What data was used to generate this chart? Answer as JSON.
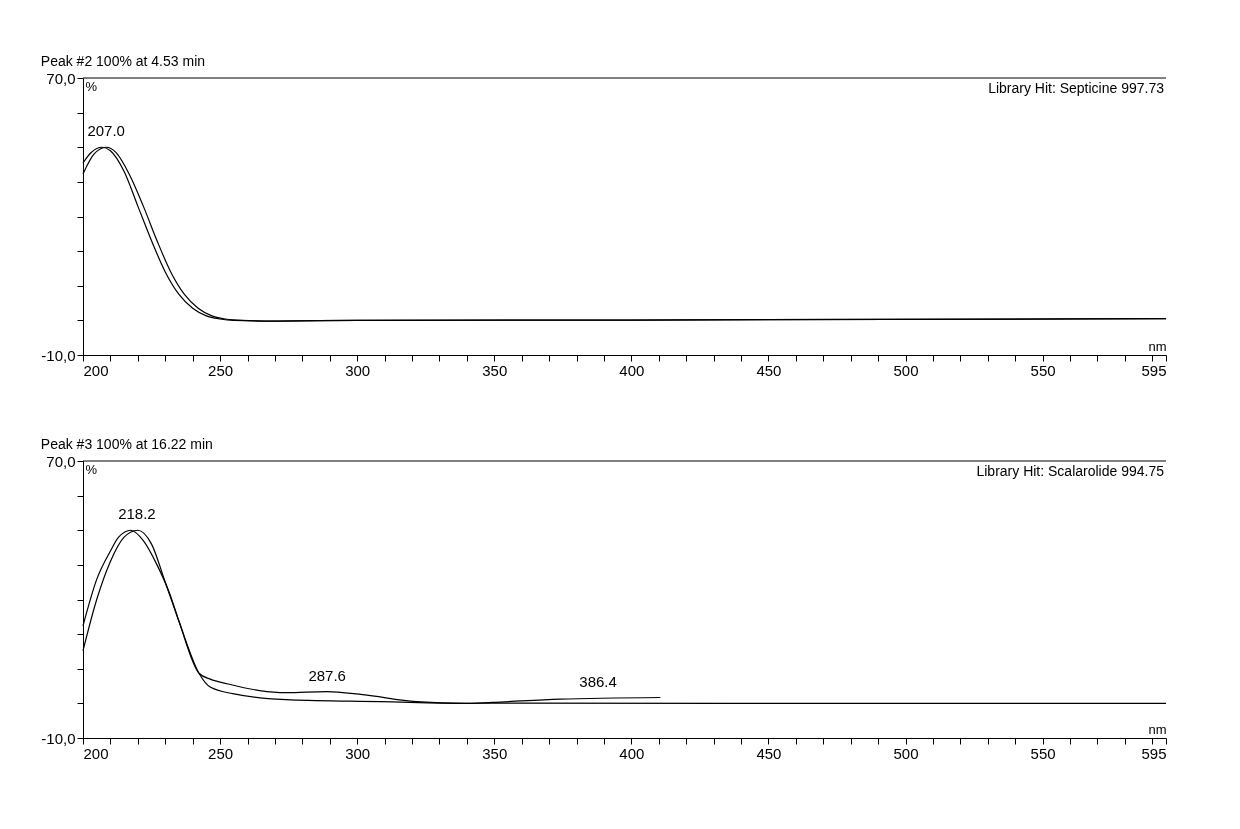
{
  "chart_data": [
    {
      "type": "line",
      "title": "Peak #2   100% at 4.53 min",
      "xlabel": "nm",
      "ylabel": "%",
      "xlim": [
        200,
        595
      ],
      "ylim": [
        -10,
        70
      ],
      "xticks": [
        200,
        {
          "value": 210,
          "label": null
        },
        {
          "value": 220,
          "label": null
        },
        {
          "value": 230,
          "label": null
        },
        {
          "value": 240,
          "label": null
        },
        250,
        {
          "value": 260,
          "label": null
        },
        {
          "value": 270,
          "label": null
        },
        {
          "value": 280,
          "label": null
        },
        {
          "value": 290,
          "label": null
        },
        300,
        {
          "value": 310,
          "label": null
        },
        {
          "value": 320,
          "label": null
        },
        {
          "value": 330,
          "label": null
        },
        {
          "value": 340,
          "label": null
        },
        350,
        {
          "value": 360,
          "label": null
        },
        {
          "value": 370,
          "label": null
        },
        {
          "value": 380,
          "label": null
        },
        {
          "value": 390,
          "label": null
        },
        400,
        {
          "value": 410,
          "label": null
        },
        {
          "value": 420,
          "label": null
        },
        {
          "value": 430,
          "label": null
        },
        {
          "value": 440,
          "label": null
        },
        450,
        {
          "value": 460,
          "label": null
        },
        {
          "value": 470,
          "label": null
        },
        {
          "value": 480,
          "label": null
        },
        {
          "value": 490,
          "label": null
        },
        500,
        {
          "value": 510,
          "label": null
        },
        {
          "value": 520,
          "label": null
        },
        {
          "value": 530,
          "label": null
        },
        {
          "value": 540,
          "label": null
        },
        550,
        {
          "value": 560,
          "label": null
        },
        {
          "value": 570,
          "label": null
        },
        {
          "value": 580,
          "label": null
        },
        {
          "value": 590,
          "label": null
        },
        595
      ],
      "yticks": [
        {
          "value": -10,
          "label": "-10,0"
        },
        {
          "value": 0,
          "label": null
        },
        {
          "value": 10,
          "label": null
        },
        {
          "value": 20,
          "label": null
        },
        {
          "value": 30,
          "label": null
        },
        {
          "value": 40,
          "label": null
        },
        {
          "value": 50,
          "label": null
        },
        {
          "value": 60,
          "label": null
        },
        {
          "value": 70,
          "label": "70,0"
        }
      ],
      "series": [
        {
          "color": "#000000",
          "x": [
            200,
            203,
            207,
            210,
            215,
            220,
            225,
            230,
            235,
            240,
            245,
            250,
            255,
            270,
            300,
            400,
            595
          ],
          "values": [
            45.5,
            48.5,
            50,
            49,
            43,
            33,
            23,
            14,
            7.5,
            3.5,
            1.3,
            0.4,
            0,
            -0.2,
            0,
            0.1,
            0.5
          ]
        },
        {
          "color": "#000000",
          "x": [
            200,
            204,
            208.5,
            212,
            217,
            222,
            227,
            232,
            237,
            242,
            247,
            252,
            258,
            270,
            300,
            400,
            595
          ],
          "values": [
            42.3,
            48,
            50,
            48.5,
            42,
            33,
            23,
            14,
            7.5,
            3.5,
            1.3,
            0.4,
            0,
            -0.2,
            0,
            0.1,
            0.5
          ]
        }
      ],
      "annotations": [
        {
          "text": "207.0",
          "x": 207,
          "y": 50
        },
        "Library Hit: Septicine 997.73"
      ]
    },
    {
      "type": "line",
      "title": "Peak #3   100% at 16.22 min",
      "xlabel": "nm",
      "ylabel": "%",
      "xlim": [
        200,
        595
      ],
      "ylim": [
        -10,
        70
      ],
      "xticks": [
        200,
        {
          "value": 210,
          "label": null
        },
        {
          "value": 220,
          "label": null
        },
        {
          "value": 230,
          "label": null
        },
        {
          "value": 240,
          "label": null
        },
        250,
        {
          "value": 260,
          "label": null
        },
        {
          "value": 270,
          "label": null
        },
        {
          "value": 280,
          "label": null
        },
        {
          "value": 290,
          "label": null
        },
        300,
        {
          "value": 310,
          "label": null
        },
        {
          "value": 320,
          "label": null
        },
        {
          "value": 330,
          "label": null
        },
        {
          "value": 340,
          "label": null
        },
        350,
        {
          "value": 360,
          "label": null
        },
        {
          "value": 370,
          "label": null
        },
        {
          "value": 380,
          "label": null
        },
        {
          "value": 390,
          "label": null
        },
        400,
        {
          "value": 410,
          "label": null
        },
        {
          "value": 420,
          "label": null
        },
        {
          "value": 430,
          "label": null
        },
        {
          "value": 440,
          "label": null
        },
        450,
        {
          "value": 460,
          "label": null
        },
        {
          "value": 470,
          "label": null
        },
        {
          "value": 480,
          "label": null
        },
        {
          "value": 490,
          "label": null
        },
        500,
        {
          "value": 510,
          "label": null
        },
        {
          "value": 520,
          "label": null
        },
        {
          "value": 530,
          "label": null
        },
        {
          "value": 540,
          "label": null
        },
        550,
        {
          "value": 560,
          "label": null
        },
        {
          "value": 570,
          "label": null
        },
        {
          "value": 580,
          "label": null
        },
        {
          "value": 590,
          "label": null
        },
        595
      ],
      "yticks": [
        {
          "value": -10,
          "label": "-10,0"
        },
        {
          "value": 0,
          "label": null
        },
        {
          "value": 10,
          "label": null
        },
        {
          "value": 20,
          "label": null
        },
        {
          "value": 30,
          "label": null
        },
        {
          "value": 40,
          "label": null
        },
        {
          "value": 50,
          "label": null
        },
        {
          "value": 60,
          "label": null
        },
        {
          "value": 70,
          "label": "70,0"
        }
      ],
      "series": [
        {
          "color": "#000000",
          "x": [
            200,
            205,
            210,
            213,
            217.5,
            222,
            227,
            231.7,
            235,
            242.3,
            246.4,
            253,
            264.4,
            274,
            289,
            302,
            321.6,
            339.5,
            349.3,
            373.9,
            410.6
          ],
          "values": [
            22.4,
            35.8,
            44,
            48,
            50,
            47,
            40,
            31.5,
            23.7,
            8.7,
            7,
            5.6,
            3.7,
            3.1,
            3.4,
            2.5,
            0.5,
            0,
            0.3,
            1.2,
            1.7
          ]
        },
        {
          "color": "#000000",
          "x": [
            200,
            205,
            210,
            215,
            220,
            225,
            230,
            235,
            242.3,
            246.4,
            254.6,
            275.8,
            308.5,
            339.5,
            357.5,
            434,
            595
          ],
          "values": [
            15.2,
            30,
            41,
            48,
            50,
            46,
            35,
            23.7,
            8.7,
            4.7,
            2.8,
            1,
            0.5,
            0,
            0.1,
            0,
            0
          ]
        }
      ],
      "annotations": [
        {
          "text": "218.2",
          "x": 218.2,
          "y": 50
        },
        {
          "text": "287.6",
          "x": 287.6,
          "y": 3.4
        },
        {
          "text": "386.4",
          "x": 386.4,
          "y": 1.5
        },
        "Library Hit: Scalarolide 994.75"
      ]
    }
  ]
}
